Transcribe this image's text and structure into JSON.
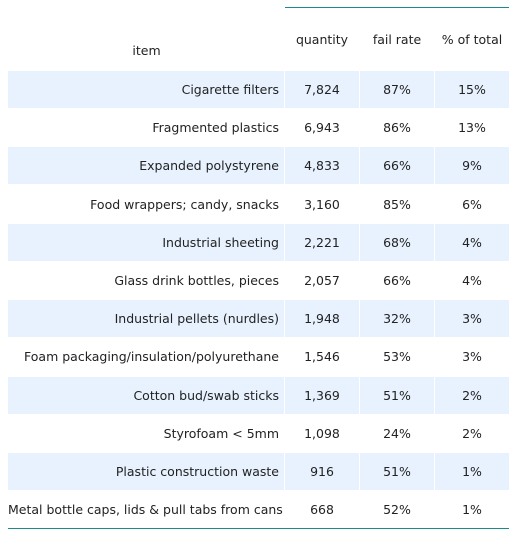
{
  "chart_data": {
    "type": "table",
    "columns": [
      "item",
      "quantity",
      "fail rate",
      "% of total"
    ],
    "rows": [
      [
        "Cigarette filters",
        "7,824",
        "87%",
        "15%"
      ],
      [
        "Fragmented plastics",
        "6,943",
        "86%",
        "13%"
      ],
      [
        "Expanded polystyrene",
        "4,833",
        "66%",
        "9%"
      ],
      [
        "Food wrappers; candy, snacks",
        "3,160",
        "85%",
        "6%"
      ],
      [
        "Industrial sheeting",
        "2,221",
        "68%",
        "4%"
      ],
      [
        "Glass drink bottles, pieces",
        "2,057",
        "66%",
        "4%"
      ],
      [
        "Industrial pellets (nurdles)",
        "1,948",
        "32%",
        "3%"
      ],
      [
        "Foam packaging/insulation/polyurethane",
        "1,546",
        "53%",
        "3%"
      ],
      [
        "Cotton bud/swab sticks",
        "1,369",
        "51%",
        "2%"
      ],
      [
        "Styrofoam < 5mm",
        "1,098",
        "24%",
        "2%"
      ],
      [
        "Plastic construction waste",
        "916",
        "51%",
        "1%"
      ],
      [
        "Metal bottle caps, lids & pull tabs from cans",
        "668",
        "52%",
        "1%"
      ]
    ],
    "colors": {
      "shade": "#e8f2fe",
      "rule": "#1a8a8a",
      "text": "#222222"
    }
  }
}
